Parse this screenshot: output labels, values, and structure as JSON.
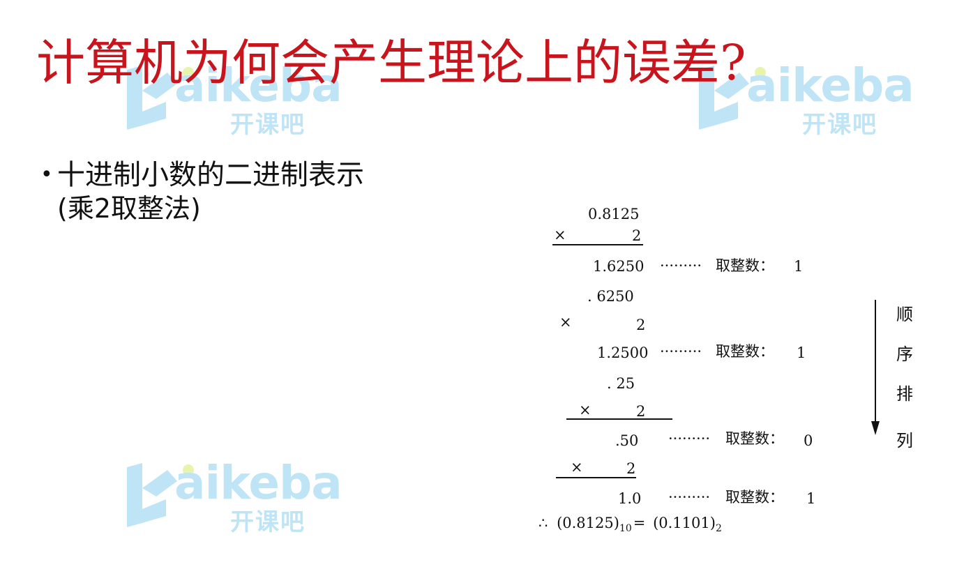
{
  "watermark": {
    "brand": "aikeba",
    "brand_cn": "开课吧",
    "color": "#b8e2f6"
  },
  "slide": {
    "title": "计算机为何会产生理论上的误差?",
    "title_color": "#c8141c",
    "bullet": {
      "text": "十进制小数的二进制表示",
      "sub": "(乘2取整法)"
    }
  },
  "calc": {
    "start": "0.8125",
    "steps": [
      {
        "times": "×",
        "multiplier": "2",
        "product": "1.6250",
        "dots": "·········",
        "label": "取整数：",
        "digit": "1",
        "fraction": ". 6250"
      },
      {
        "times": "×",
        "multiplier": "2",
        "product": "1.2500",
        "dots": "·········",
        "label": "取整数：",
        "digit": "1",
        "fraction": ". 25"
      },
      {
        "times": "×",
        "multiplier": "2",
        "product": ".50",
        "dots": "·········",
        "label": "取整数：",
        "digit": "0"
      },
      {
        "times": "×",
        "multiplier": "2",
        "product": "1.0",
        "dots": "·········",
        "label": "取整数：",
        "digit": "1"
      }
    ],
    "conclusion": {
      "therefore": "∴",
      "decimal": "(0.8125)",
      "decimal_base": "10",
      "equals": "=",
      "binary": "(0.1101)",
      "binary_base": "2"
    }
  },
  "order_label": [
    "顺",
    "序",
    "排",
    "列"
  ]
}
